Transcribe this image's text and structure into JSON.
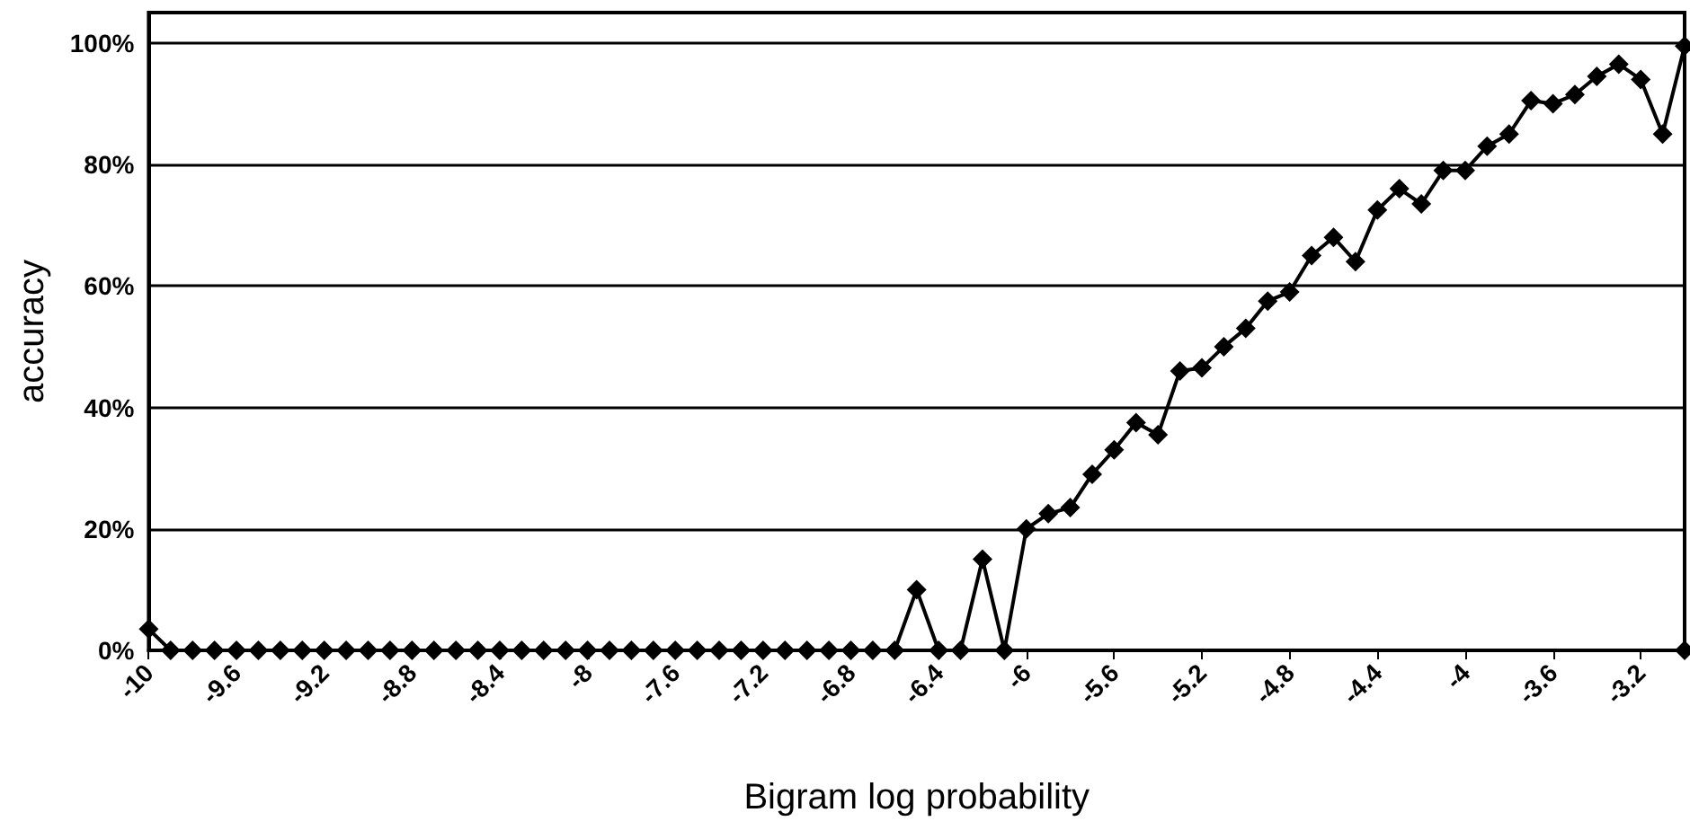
{
  "chart_data": {
    "type": "line",
    "xlabel": "Bigram log probability",
    "ylabel": "accuracy",
    "x": [
      -10,
      -9.9,
      -9.8,
      -9.7,
      -9.6,
      -9.5,
      -9.4,
      -9.3,
      -9.2,
      -9.1,
      -9.0,
      -8.9,
      -8.8,
      -8.7,
      -8.6,
      -8.5,
      -8.4,
      -8.3,
      -8.2,
      -8.1,
      -8.0,
      -7.9,
      -7.8,
      -7.7,
      -7.6,
      -7.5,
      -7.4,
      -7.3,
      -7.2,
      -7.1,
      -7.0,
      -6.9,
      -6.8,
      -6.7,
      -6.6,
      -6.5,
      -6.4,
      -6.3,
      -6.2,
      -6.1,
      -6.0,
      -5.9,
      -5.8,
      -5.7,
      -5.6,
      -5.5,
      -5.4,
      -5.3,
      -5.2,
      -5.1,
      -5.0,
      -4.9,
      -4.8,
      -4.7,
      -4.6,
      -4.5,
      -4.4,
      -4.3,
      -4.2,
      -4.1,
      -4.0,
      -3.9,
      -3.8,
      -3.7,
      -3.6,
      -3.5,
      -3.4,
      -3.3,
      -3.2,
      -3.1,
      -3.0,
      -3.0
    ],
    "series": [
      {
        "color": "#000000",
        "values": [
          3.5,
          0,
          0,
          0,
          0,
          0,
          0,
          0,
          0,
          0,
          0,
          0,
          0,
          0,
          0,
          0,
          0,
          0,
          0,
          0,
          0,
          0,
          0,
          0,
          0,
          0,
          0,
          0,
          0,
          0,
          0,
          0,
          0,
          0,
          0,
          10,
          0,
          0,
          15,
          0,
          20,
          22.5,
          23.5,
          29,
          33,
          37.5,
          35.5,
          46,
          46.5,
          50,
          53,
          57.5,
          59,
          65,
          68,
          64,
          72.5,
          76,
          73.5,
          79,
          79,
          83,
          85,
          90.5,
          90,
          91.5,
          94.5,
          96.5,
          94,
          85,
          99.5,
          0
        ]
      }
    ],
    "xlim": [
      -10,
      -3.0
    ],
    "xticks": [
      -10,
      -9.6,
      -9.2,
      -8.8,
      -8.4,
      -8,
      -7.6,
      -7.2,
      -6.8,
      -6.4,
      -6,
      -5.6,
      -5.2,
      -4.8,
      -4.4,
      -4,
      -3.6,
      -3.2
    ],
    "ylim": [
      0,
      105
    ],
    "yticks": [
      {
        "value": 0,
        "label": "0%"
      },
      {
        "value": 20,
        "label": "20%"
      },
      {
        "value": 40,
        "label": "40%"
      },
      {
        "value": 60,
        "label": "60%"
      },
      {
        "value": 80,
        "label": "80%"
      },
      {
        "value": 100,
        "label": "100%"
      }
    ],
    "grid": "y",
    "marker": "diamond",
    "line_style": "solid"
  }
}
